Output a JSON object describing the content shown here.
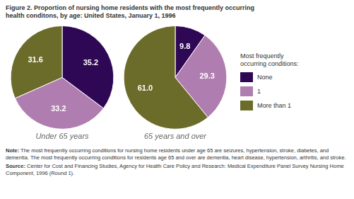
{
  "title": [
    "Figure 2. Proportion of nursing home residents with the most frequently occurring",
    "health conditons, by age: United States, January 1, 1996"
  ],
  "legend": "right",
  "legend_title": [
    "Most frequently",
    "occurring conditions:"
  ],
  "annotations": [
    "Note: The most frequently occurring conditions for nursing home residents under age 65 are seizures, hypertension, stroke, diabetes, and dementia. The most frequently occurring conditions for residents age 65 and over are dementia, heart disease, hypertension, arthritis, and stroke.",
    "Source: Center for Cost and Financing Studies, Agency for Health Care Policy and Research: Medical Expenditure Panel Survey Nursing Home Component, 1996 (Round 1)."
  ],
  "chart_data": [
    {
      "type": "pie",
      "title": "Under 65 years",
      "categories": [
        "None",
        "1",
        "More than 1"
      ],
      "values": [
        35.2,
        33.2,
        31.6
      ],
      "colors": [
        "#2e0854",
        "#b07db0",
        "#6b6b2a"
      ],
      "data_labels": true
    },
    {
      "type": "pie",
      "title": "65 years and over",
      "categories": [
        "None",
        "1",
        "More than 1"
      ],
      "values": [
        9.8,
        29.3,
        61.0
      ],
      "value_labels": [
        "9.8",
        "29.3",
        "61.0"
      ],
      "colors": [
        "#2e0854",
        "#b07db0",
        "#6b6b2a"
      ],
      "data_labels": true
    }
  ]
}
